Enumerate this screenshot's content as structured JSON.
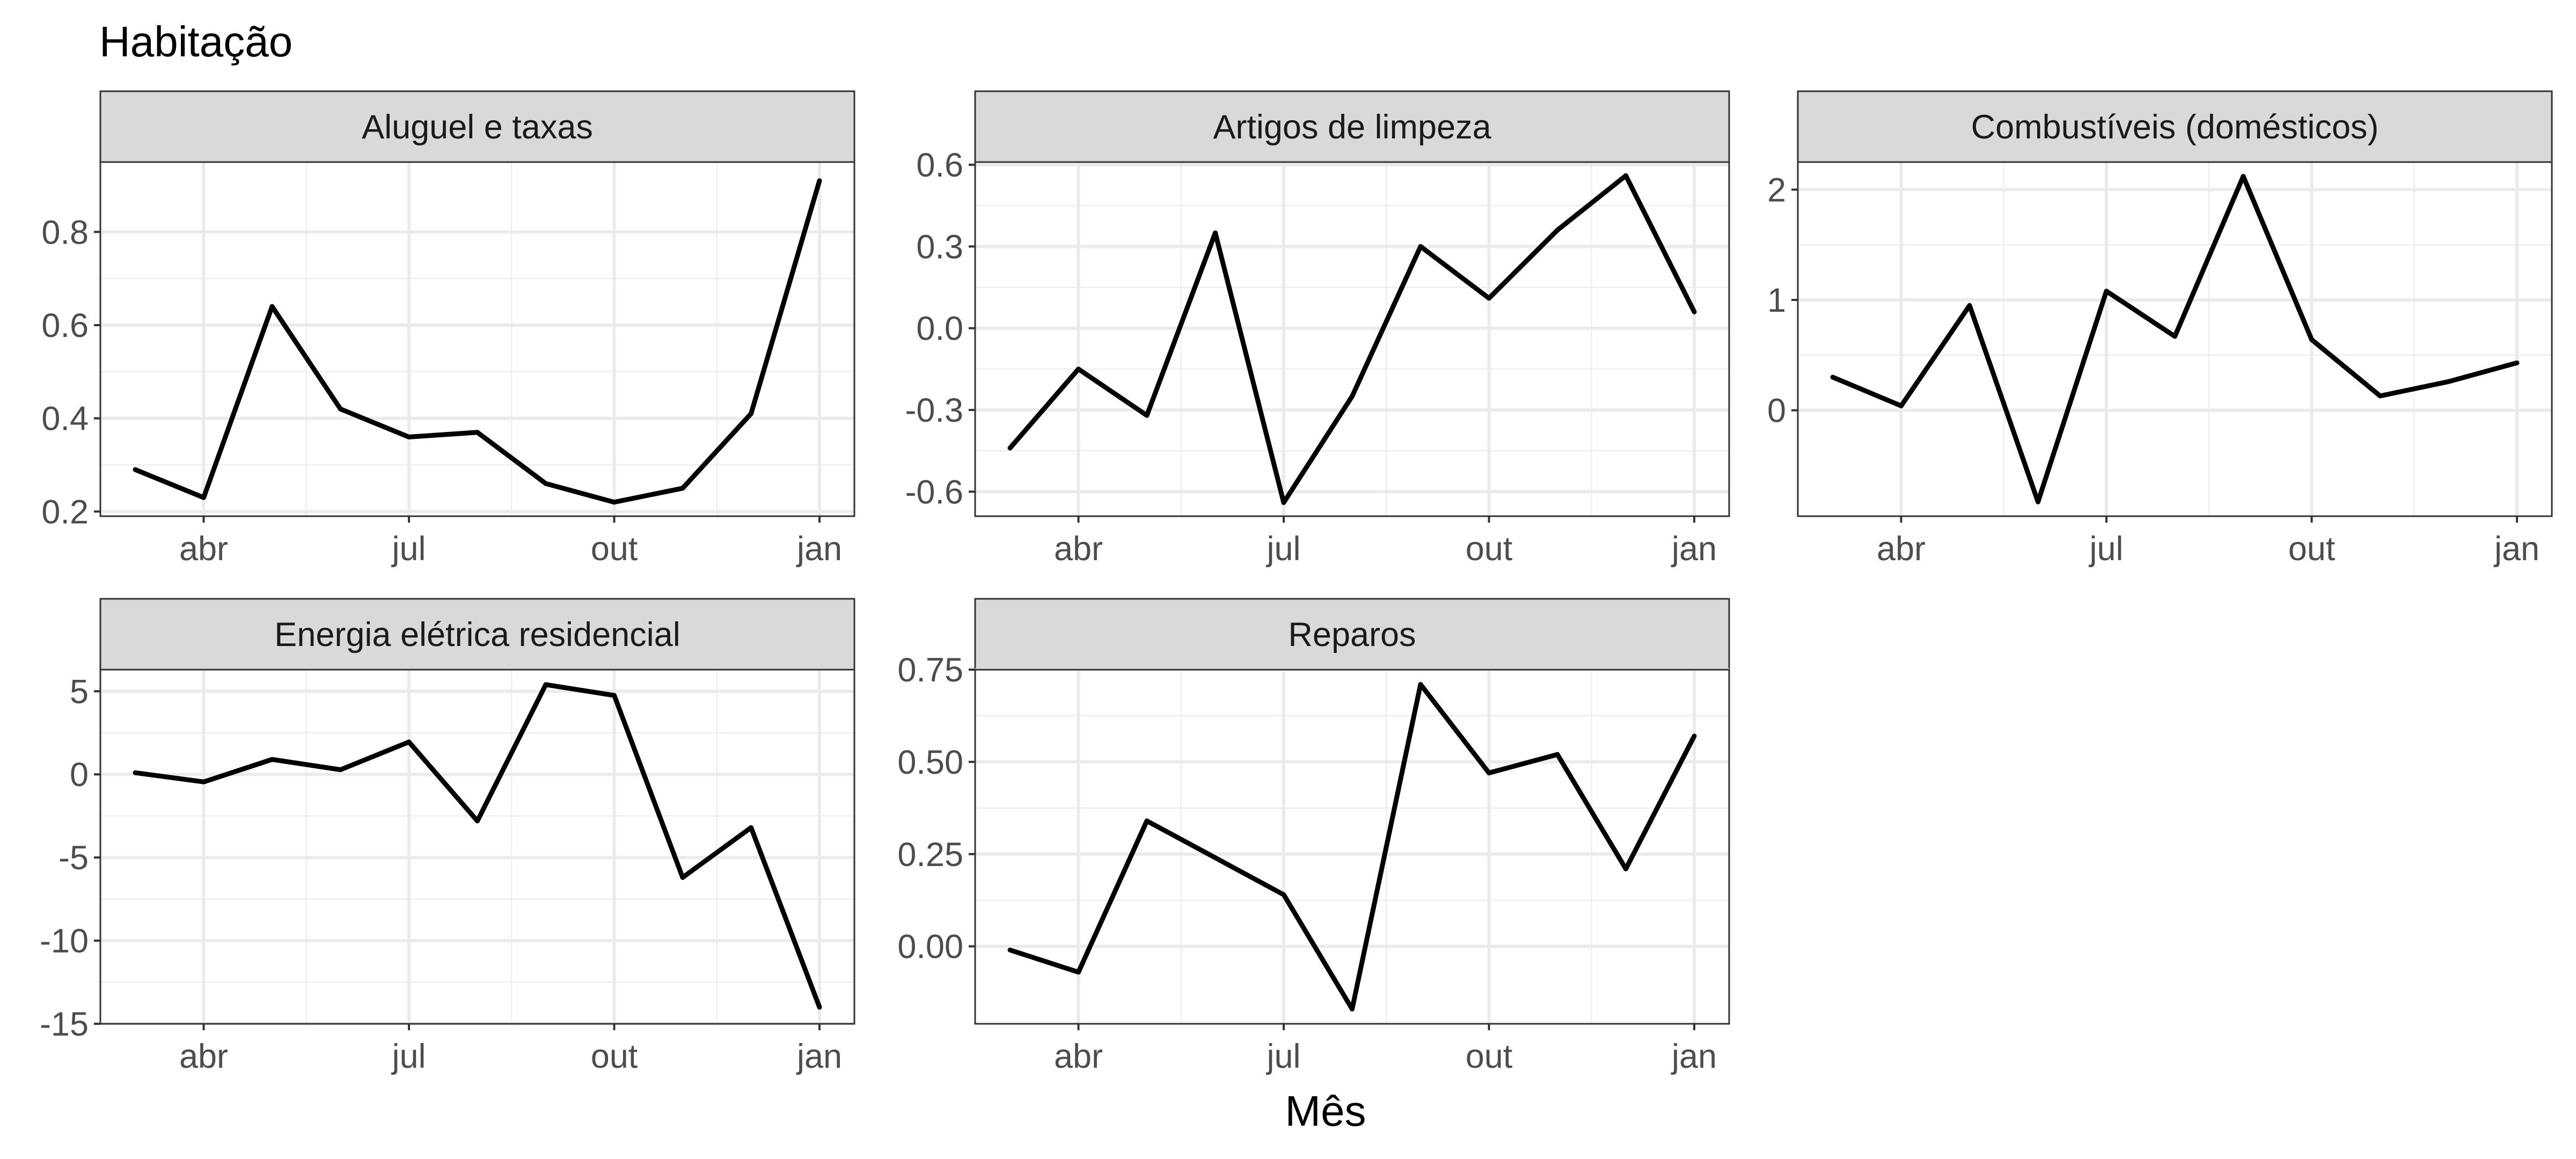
{
  "title": "Habitação",
  "x_axis_title": "Mês",
  "colors": {
    "line": "#000000",
    "strip_fill": "#d9d9d9",
    "strip_border": "#333333",
    "grid": "#ebebeb",
    "panel_border": "#333333",
    "tick_text": "#4d4d4d"
  },
  "chart_data": [
    {
      "type": "line",
      "title": "Aluguel e taxas",
      "x": [
        "2019-03",
        "2019-04",
        "2019-05",
        "2019-06",
        "2019-07",
        "2019-08",
        "2019-09",
        "2019-10",
        "2019-11",
        "2019-12",
        "2020-01"
      ],
      "y": [
        0.29,
        0.23,
        0.64,
        0.42,
        0.36,
        0.37,
        0.26,
        0.22,
        0.25,
        0.41,
        0.91
      ],
      "ylim": [
        0.19,
        0.95
      ],
      "yticks": [
        0.2,
        0.4,
        0.6,
        0.8
      ],
      "ytick_labels": [
        "0.2",
        "0.4",
        "0.6",
        "0.8"
      ],
      "xticks": [
        "2019-04",
        "2019-07",
        "2019-10",
        "2020-01"
      ],
      "xtick_labels": [
        "abr",
        "jul",
        "out",
        "jan"
      ],
      "grid": true
    },
    {
      "type": "line",
      "title": "Artigos de limpeza",
      "x": [
        "2019-03",
        "2019-04",
        "2019-05",
        "2019-06",
        "2019-07",
        "2019-08",
        "2019-09",
        "2019-10",
        "2019-11",
        "2019-12",
        "2020-01"
      ],
      "y": [
        -0.44,
        -0.15,
        -0.32,
        0.35,
        -0.64,
        -0.25,
        0.3,
        0.11,
        0.36,
        0.56,
        0.06
      ],
      "ylim": [
        -0.69,
        0.61
      ],
      "yticks": [
        -0.6,
        -0.3,
        0.0,
        0.3,
        0.6
      ],
      "ytick_labels": [
        "-0.6",
        "-0.3",
        "0.0",
        "0.3",
        "0.6"
      ],
      "xticks": [
        "2019-04",
        "2019-07",
        "2019-10",
        "2020-01"
      ],
      "xtick_labels": [
        "abr",
        "jul",
        "out",
        "jan"
      ],
      "grid": true
    },
    {
      "type": "line",
      "title": "Combustíveis (domésticos)",
      "x": [
        "2019-03",
        "2019-04",
        "2019-05",
        "2019-06",
        "2019-07",
        "2019-08",
        "2019-09",
        "2019-10",
        "2019-11",
        "2019-12",
        "2020-01"
      ],
      "y": [
        0.3,
        0.04,
        0.95,
        -0.83,
        1.08,
        0.67,
        2.12,
        0.64,
        0.13,
        0.26,
        0.43
      ],
      "ylim": [
        -0.96,
        2.25
      ],
      "yticks": [
        0,
        1,
        2
      ],
      "ytick_labels": [
        "0",
        "1",
        "2"
      ],
      "xticks": [
        "2019-04",
        "2019-07",
        "2019-10",
        "2020-01"
      ],
      "xtick_labels": [
        "abr",
        "jul",
        "out",
        "jan"
      ],
      "grid": true
    },
    {
      "type": "line",
      "title": "Energia elétrica residencial",
      "x": [
        "2019-03",
        "2019-04",
        "2019-05",
        "2019-06",
        "2019-07",
        "2019-08",
        "2019-09",
        "2019-10",
        "2019-11",
        "2019-12",
        "2020-01"
      ],
      "y": [
        0.1,
        -0.45,
        0.9,
        0.28,
        1.95,
        -2.8,
        5.4,
        4.75,
        -6.2,
        -3.2,
        -14.0
      ],
      "ylim": [
        -15.0,
        6.3
      ],
      "yticks": [
        -15,
        -10,
        -5,
        0,
        5
      ],
      "ytick_labels": [
        "-15",
        "-10",
        "-5",
        "0",
        "5"
      ],
      "xticks": [
        "2019-04",
        "2019-07",
        "2019-10",
        "2020-01"
      ],
      "xtick_labels": [
        "abr",
        "jul",
        "out",
        "jan"
      ],
      "grid": true
    },
    {
      "type": "line",
      "title": "Reparos",
      "x": [
        "2019-03",
        "2019-04",
        "2019-05",
        "2019-06",
        "2019-07",
        "2019-08",
        "2019-09",
        "2019-10",
        "2019-11",
        "2019-12",
        "2020-01"
      ],
      "y": [
        -0.01,
        -0.07,
        0.34,
        0.24,
        0.14,
        -0.17,
        0.71,
        0.47,
        0.52,
        0.21,
        0.57
      ],
      "ylim": [
        -0.21,
        0.75
      ],
      "yticks": [
        0.0,
        0.25,
        0.5,
        0.75
      ],
      "ytick_labels": [
        "0.00",
        "0.25",
        "0.50",
        "0.75"
      ],
      "xticks": [
        "2019-04",
        "2019-07",
        "2019-10",
        "2020-01"
      ],
      "xtick_labels": [
        "abr",
        "jul",
        "out",
        "jan"
      ],
      "grid": true
    }
  ]
}
